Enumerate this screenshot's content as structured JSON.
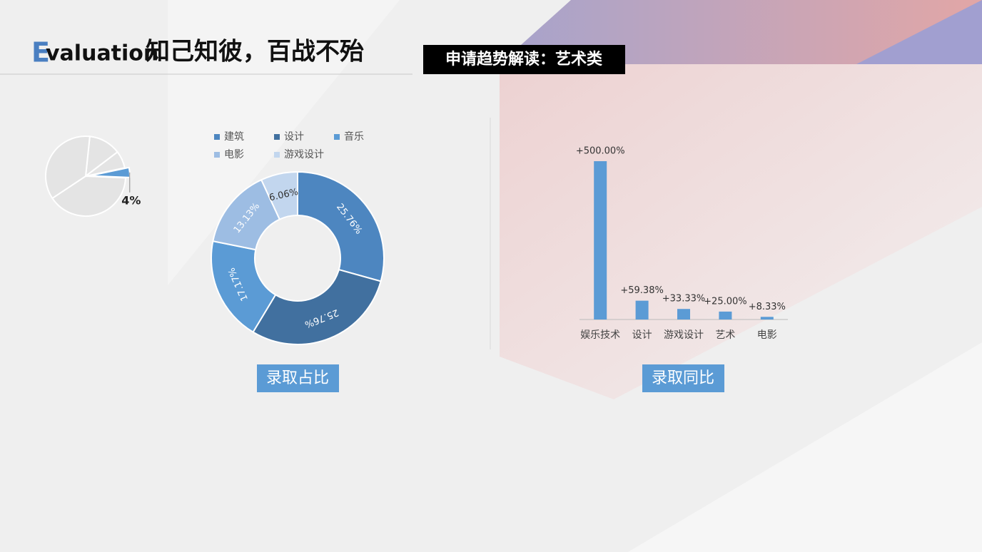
{
  "header": {
    "title_letter": "E",
    "title_word": "valuation",
    "title_cn": "知己知彼，百战不殆",
    "subtitle": "申请趋势解读：艺术类"
  },
  "chart_data": [
    {
      "type": "pie",
      "values": [
        13,
        7,
        4,
        40,
        36
      ],
      "value_labels": [
        null,
        null,
        "4%",
        null,
        null
      ],
      "colors": [
        "#e4e4e4",
        "#e4e4e4",
        "#5b9bd5",
        "#e4e4e4",
        "#e4e4e4"
      ]
    },
    {
      "type": "donut",
      "categories": [
        "建筑",
        "设计",
        "音乐",
        "电影",
        "游戏设计"
      ],
      "values": [
        25.76,
        25.76,
        17.17,
        13.13,
        6.06
      ],
      "value_labels": [
        "25.76%",
        "25.76%",
        "17.17%",
        "13.13%",
        "6.06%"
      ],
      "colors": [
        "#4d86c0",
        "#41709f",
        "#5b9bd5",
        "#9dbde3",
        "#c2d6ee"
      ],
      "caption": "录取占比"
    },
    {
      "type": "bar",
      "categories": [
        "娱乐技术",
        "设计",
        "游戏设计",
        "艺术",
        "电影"
      ],
      "values": [
        500,
        59.38,
        33.33,
        25,
        8.33
      ],
      "value_labels": [
        "+500.00%",
        "+59.38%",
        "+33.33%",
        "+25.00%",
        "+8.33%"
      ],
      "color": "#5b9bd5",
      "caption": "录取同比"
    }
  ]
}
